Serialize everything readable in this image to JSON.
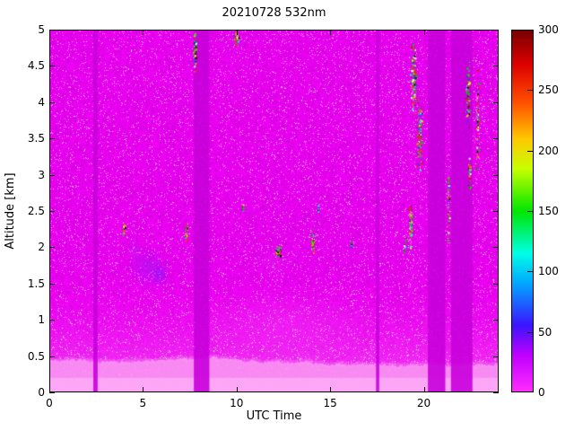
{
  "chart_data": {
    "type": "heatmap",
    "title": "20210728 532nm",
    "xlabel": "UTC Time",
    "ylabel": "Altitude [km]",
    "xlim": [
      0,
      24
    ],
    "ylim": [
      0,
      5
    ],
    "xticks": [
      0,
      5,
      10,
      15,
      20
    ],
    "yticks": [
      0,
      0.5,
      1,
      1.5,
      2,
      2.5,
      3,
      3.5,
      4,
      4.5,
      5
    ],
    "colorbar": {
      "min": 0,
      "max": 300,
      "ticks": [
        0,
        50,
        100,
        150,
        200,
        250,
        300
      ],
      "stops": [
        [
          0,
          "#ff2dff"
        ],
        [
          30,
          "#c000ff"
        ],
        [
          55,
          "#3c14ff"
        ],
        [
          90,
          "#00a8ff"
        ],
        [
          115,
          "#00ffe6"
        ],
        [
          150,
          "#00e600"
        ],
        [
          185,
          "#c8ff00"
        ],
        [
          210,
          "#ffc800"
        ],
        [
          240,
          "#ff5000"
        ],
        [
          272,
          "#dc0000"
        ],
        [
          300,
          "#780000"
        ]
      ]
    },
    "field": {
      "background_color": "#e000e6",
      "gap_color": "#c800da",
      "data_gaps_utc": [
        [
          2.35,
          2.58
        ],
        [
          7.72,
          8.55
        ],
        [
          17.45,
          17.62
        ],
        [
          20.22,
          21.15
        ],
        [
          21.45,
          22.6
        ]
      ],
      "surface_layer": {
        "top_km": 0.45,
        "color": "#fa94f3",
        "core_color": "#ffb2f8",
        "core_top_km": 0.2
      },
      "aerosol_haze": [
        {
          "t": 5.3,
          "alt": 1.72,
          "dt": 2.4,
          "dalt": 0.6,
          "rgba": [
            80,
            60,
            255,
            0.26
          ]
        },
        {
          "t": 5.9,
          "alt": 1.62,
          "dt": 1.0,
          "dalt": 0.34,
          "rgba": [
            50,
            40,
            250,
            0.3
          ]
        },
        {
          "t": 4.55,
          "alt": 1.95,
          "dt": 0.9,
          "dalt": 0.35,
          "rgba": [
            140,
            80,
            255,
            0.2
          ]
        },
        {
          "t": 12.5,
          "alt": 0.95,
          "dt": 10.0,
          "dalt": 1.1,
          "rgba": [
            255,
            120,
            252,
            0.15
          ]
        },
        {
          "t": 12.0,
          "alt": 1.8,
          "dt": 2.5,
          "dalt": 0.5,
          "rgba": [
            230,
            120,
            255,
            0.12
          ]
        }
      ],
      "cloud_palette": {
        "colors": [
          "#00cc00",
          "#ff2200",
          "#ffee00",
          "#00ffff",
          "#2244ff",
          "#ffffff",
          "#111111",
          "#ff8800"
        ],
        "weights": [
          0.22,
          0.18,
          0.1,
          0.1,
          0.12,
          0.08,
          0.12,
          0.08
        ]
      },
      "cloud_features": [
        {
          "t": 7.76,
          "alt": 4.72,
          "dt": 0.16,
          "dalt": 0.55,
          "n": 120
        },
        {
          "t": 9.95,
          "alt": 4.9,
          "dt": 0.28,
          "dalt": 0.2,
          "n": 60
        },
        {
          "t": 19.42,
          "alt": 4.35,
          "dt": 0.3,
          "dalt": 0.9,
          "n": 200
        },
        {
          "t": 19.75,
          "alt": 3.55,
          "dt": 0.3,
          "dalt": 0.9,
          "n": 150
        },
        {
          "t": 19.28,
          "alt": 2.3,
          "dt": 0.16,
          "dalt": 0.6,
          "n": 100
        },
        {
          "t": 21.3,
          "alt": 2.5,
          "dt": 0.1,
          "dalt": 1.1,
          "n": 80
        },
        {
          "t": 22.33,
          "alt": 4.1,
          "dt": 0.2,
          "dalt": 0.8,
          "n": 110
        },
        {
          "t": 22.42,
          "alt": 3.0,
          "dt": 0.14,
          "dalt": 0.4,
          "n": 50
        },
        {
          "t": 22.85,
          "alt": 3.8,
          "dt": 0.14,
          "dalt": 1.3,
          "n": 100
        },
        {
          "t": 3.95,
          "alt": 2.25,
          "dt": 0.18,
          "dalt": 0.22,
          "n": 35
        },
        {
          "t": 7.3,
          "alt": 2.2,
          "dt": 0.12,
          "dalt": 0.28,
          "n": 40
        },
        {
          "t": 12.2,
          "alt": 1.95,
          "dt": 0.35,
          "dalt": 0.16,
          "n": 50
        },
        {
          "t": 14.05,
          "alt": 2.1,
          "dt": 0.2,
          "dalt": 0.3,
          "n": 55
        },
        {
          "t": 14.35,
          "alt": 2.55,
          "dt": 0.08,
          "dalt": 0.14,
          "n": 14
        },
        {
          "t": 10.3,
          "alt": 2.55,
          "dt": 0.08,
          "dalt": 0.12,
          "n": 12
        },
        {
          "t": 18.95,
          "alt": 2.0,
          "dt": 0.1,
          "dalt": 0.2,
          "n": 18
        },
        {
          "t": 16.1,
          "alt": 2.05,
          "dt": 0.08,
          "dalt": 0.12,
          "n": 10
        }
      ]
    }
  }
}
